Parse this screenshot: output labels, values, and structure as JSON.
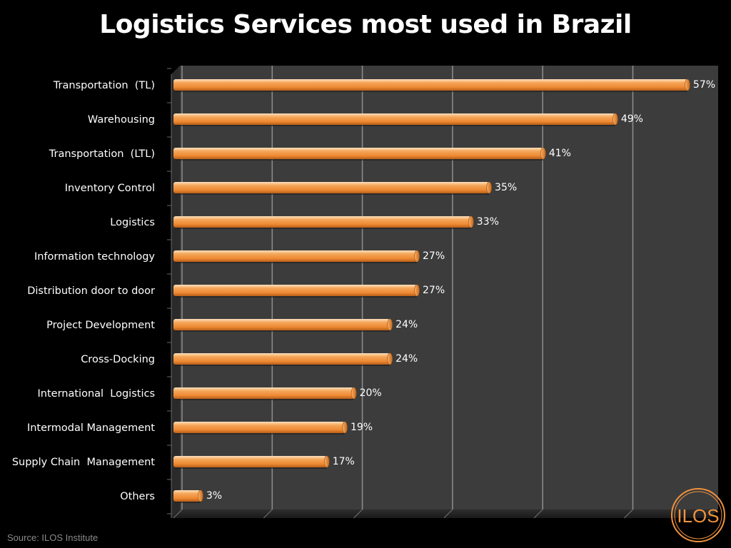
{
  "title": "Logistics Services most used in Brazil",
  "source": "Source: ILOS Institute",
  "logo_text": "ILOS",
  "colors": {
    "bar": "#f0923f",
    "bar_light": "#fbc48d",
    "bar_dark": "#c86a1c",
    "plot_bg": "#3a3a3a",
    "grid": "#8c8c8c",
    "logo": "#f0923f"
  },
  "chart_data": {
    "type": "bar",
    "orientation": "horizontal",
    "title": "Logistics Services most used in Brazil",
    "categories": [
      "Transportation  (TL)",
      "Warehousing",
      "Transportation  (LTL)",
      "Inventory Control",
      "Logistics",
      "Information technology",
      "Distribution door to door",
      "Project Development",
      "Cross-Docking",
      "International  Logistics",
      "Intermodal Management",
      "Supply Chain  Management",
      "Others"
    ],
    "values": [
      57,
      49,
      41,
      35,
      33,
      27,
      27,
      24,
      24,
      20,
      19,
      17,
      3
    ],
    "value_labels": [
      "57%",
      "49%",
      "41%",
      "35%",
      "33%",
      "27%",
      "27%",
      "24%",
      "24%",
      "20%",
      "19%",
      "17%",
      "3%"
    ],
    "xlim": [
      0,
      60
    ],
    "grid_step": 10,
    "grid": true,
    "legend": "none"
  }
}
